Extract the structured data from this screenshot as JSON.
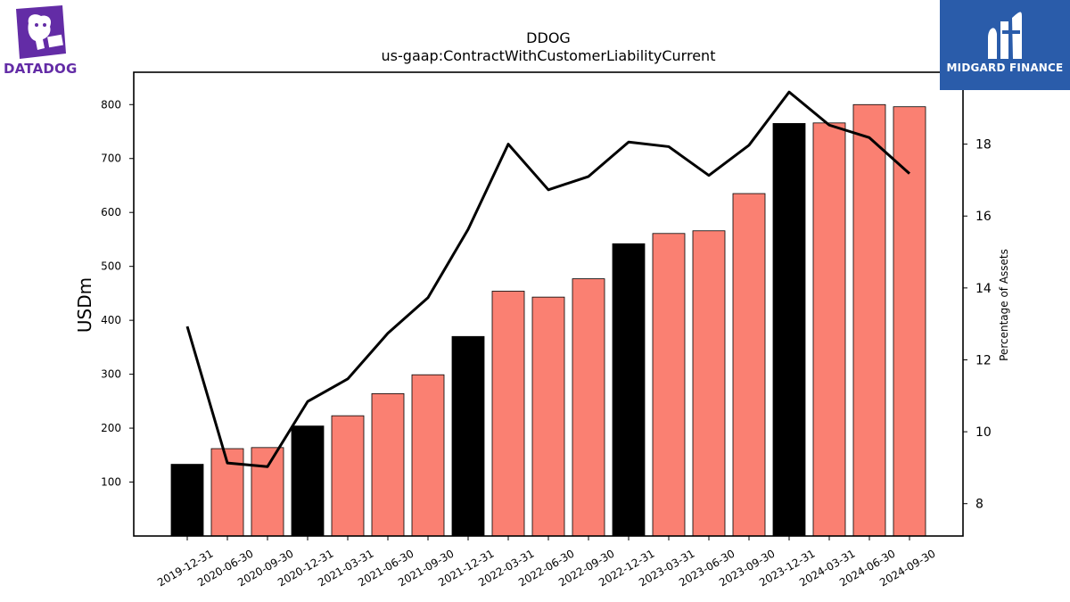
{
  "logos": {
    "left_text": "DATADOG",
    "right_text": "MIDGARD FINANCE",
    "left_color": "#632ca6",
    "right_bg": "#2a5caa"
  },
  "chart_data": {
    "type": "bar",
    "title": "DDOG",
    "subtitle": "us-gaap:ContractWithCustomerLiabilityCurrent",
    "ylabel": "USDm",
    "y2label": "Percentage of Assets",
    "ylim": [
      0,
      860
    ],
    "y2lim": [
      7.1,
      20.0
    ],
    "yticks": [
      100,
      200,
      300,
      400,
      500,
      600,
      700,
      800
    ],
    "y2ticks": [
      8,
      10,
      12,
      14,
      16,
      18
    ],
    "categories": [
      "2019-12-31",
      "2020-06-30",
      "2020-09-30",
      "2020-12-31",
      "2021-03-31",
      "2021-06-30",
      "2021-09-30",
      "2021-12-31",
      "2022-03-31",
      "2022-06-30",
      "2022-09-30",
      "2022-12-31",
      "2023-03-31",
      "2023-06-30",
      "2023-09-30",
      "2023-12-31",
      "2024-03-31",
      "2024-06-30",
      "2024-09-30"
    ],
    "series": [
      {
        "type": "bar",
        "values": [
          133,
          162,
          164,
          204,
          223,
          264,
          299,
          370,
          454,
          443,
          477,
          542,
          561,
          566,
          635,
          765,
          766,
          800,
          796
        ],
        "colors": [
          "#000000",
          "#fa8072",
          "#fa8072",
          "#000000",
          "#fa8072",
          "#fa8072",
          "#fa8072",
          "#000000",
          "#fa8072",
          "#fa8072",
          "#fa8072",
          "#000000",
          "#fa8072",
          "#fa8072",
          "#fa8072",
          "#000000",
          "#fa8072",
          "#fa8072",
          "#fa8072"
        ]
      },
      {
        "type": "line",
        "axis": "right",
        "color": "#000000",
        "values": [
          12.93,
          9.13,
          9.03,
          10.84,
          11.47,
          12.74,
          13.73,
          15.63,
          18.0,
          16.73,
          17.1,
          18.06,
          17.93,
          17.13,
          17.97,
          19.45,
          18.53,
          18.18,
          17.18
        ]
      }
    ],
    "grid": false,
    "legend": "none"
  }
}
